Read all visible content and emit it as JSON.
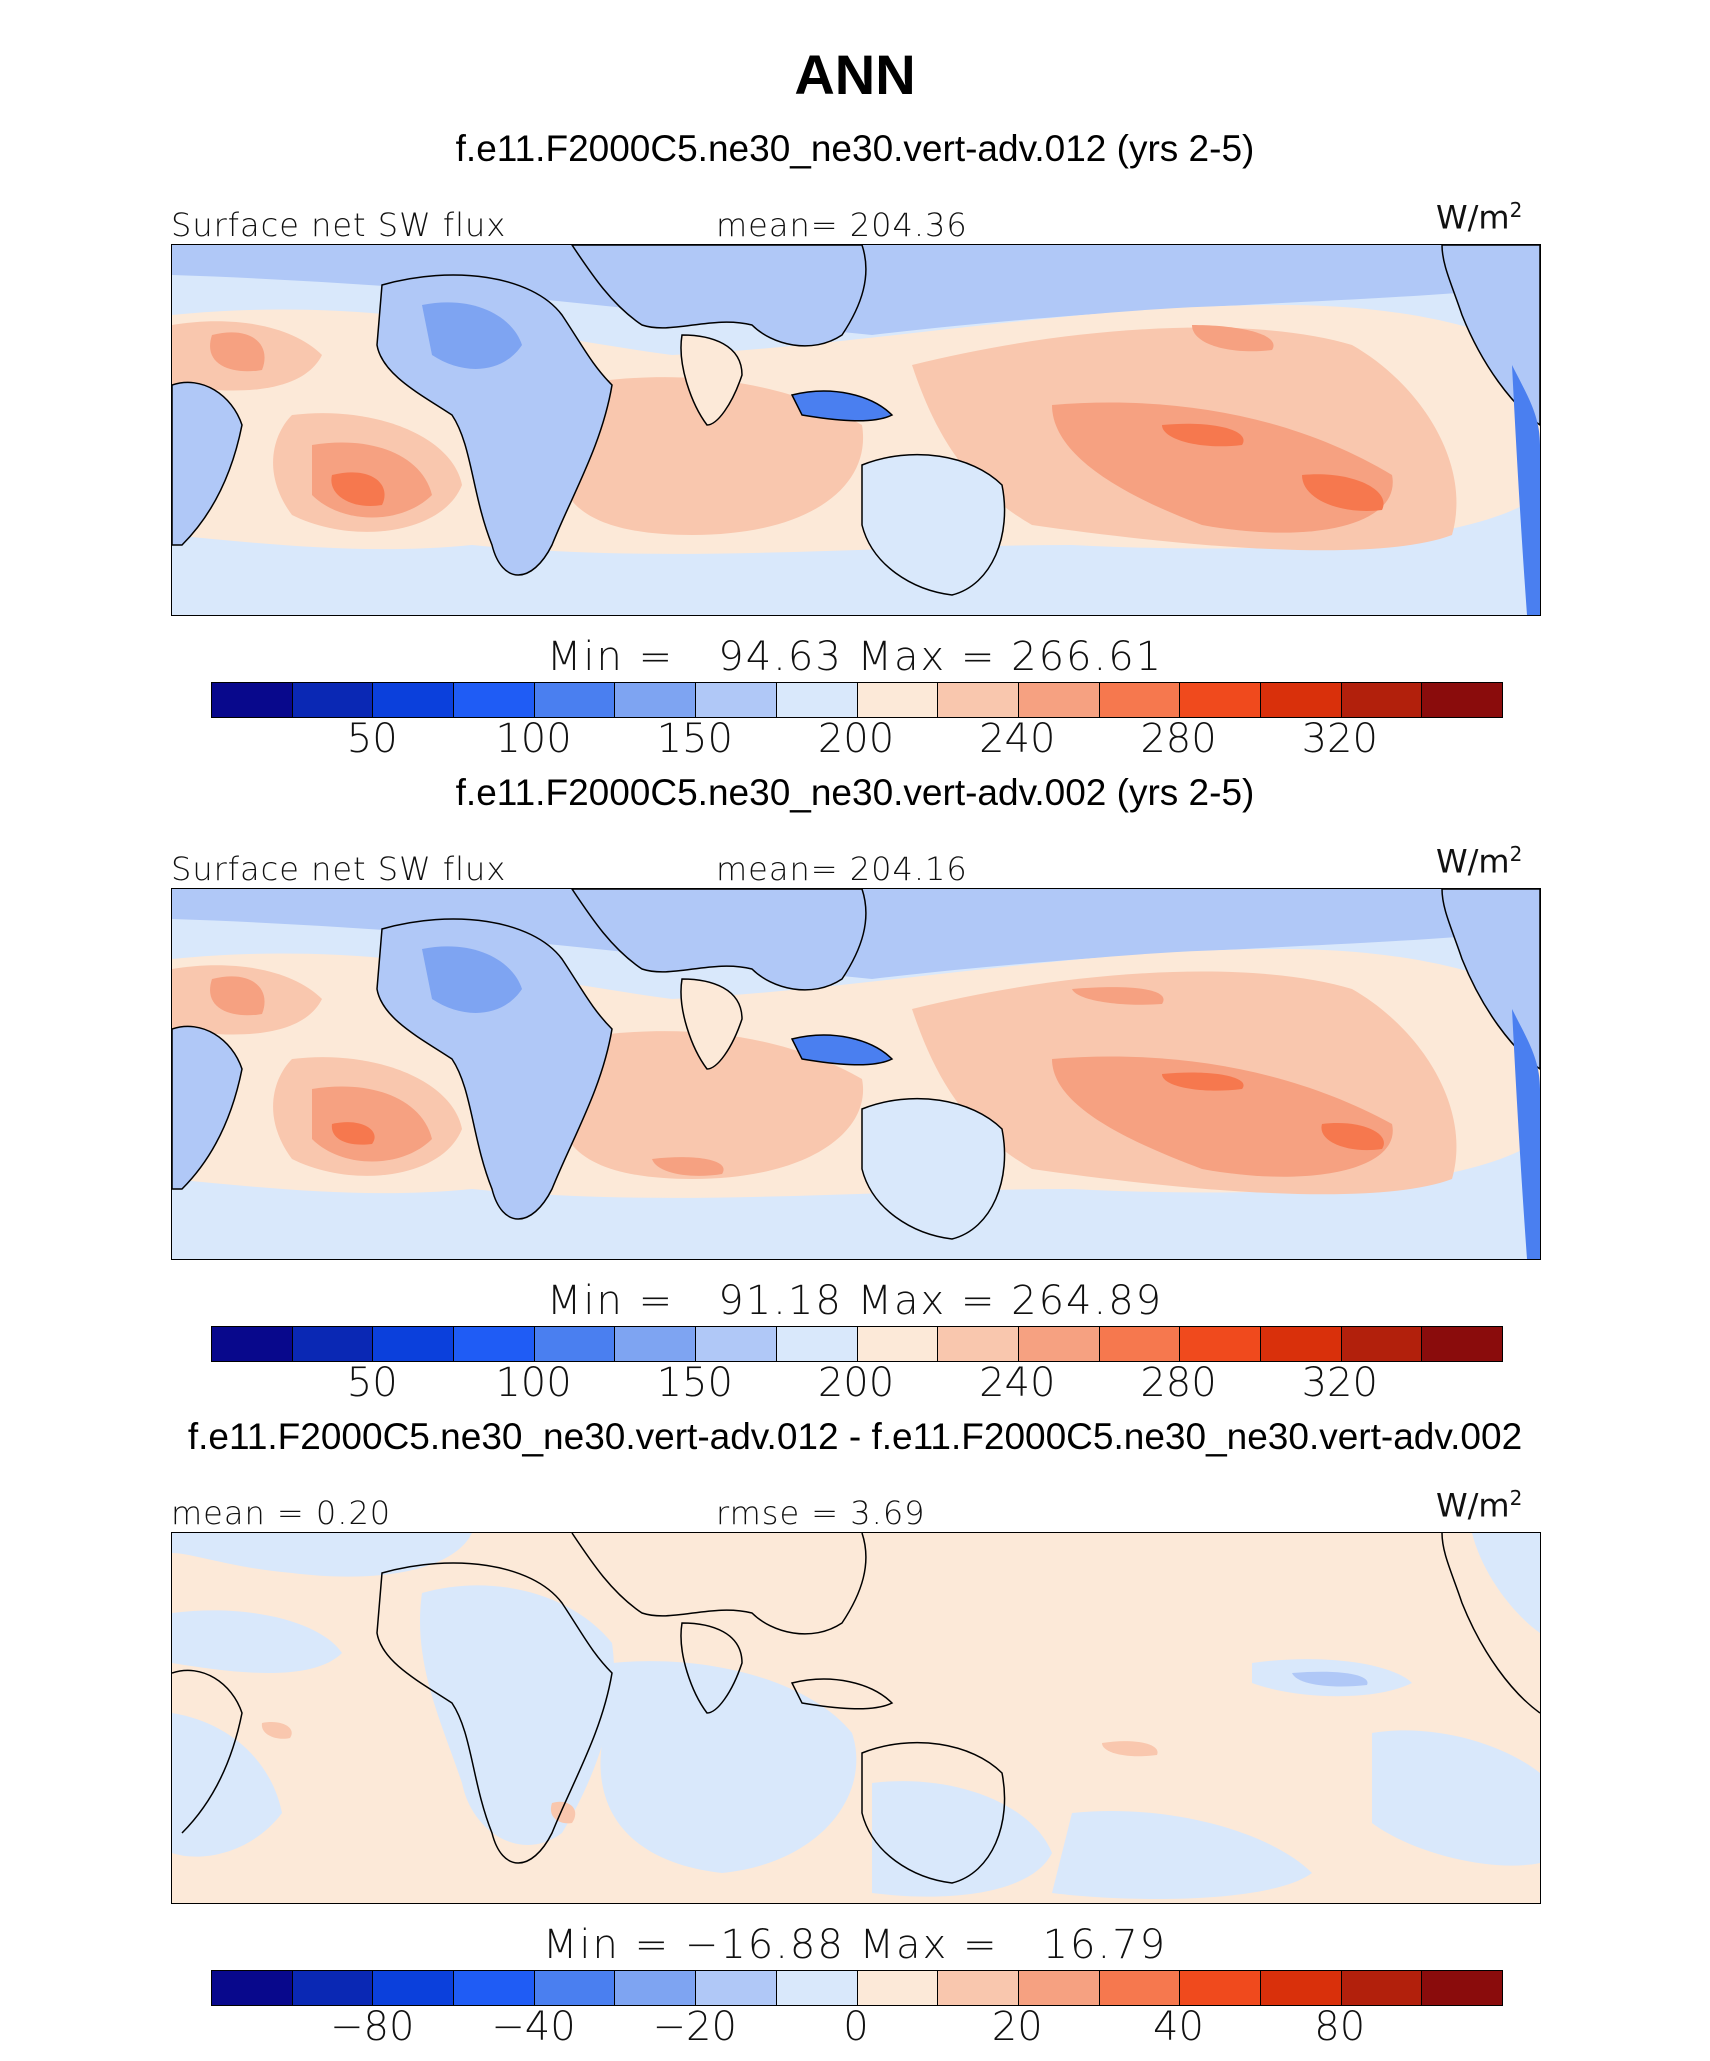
{
  "figure": {
    "title": "ANN"
  },
  "panels": [
    {
      "case_title": "f.e11.F2000C5.ne30_ne30.vert-adv.012 (yrs 2-5)",
      "left_label": "Surface net SW flux",
      "center_label": "mean= 204.36",
      "units": "W/m",
      "units_sup": "2",
      "min_max": "Min =   94.63 Max = 266.61",
      "colorbar_ticks": [
        "50",
        "100",
        "150",
        "200",
        "240",
        "280",
        "320"
      ]
    },
    {
      "case_title": "f.e11.F2000C5.ne30_ne30.vert-adv.002 (yrs 2-5)",
      "left_label": "Surface net SW flux",
      "center_label": "mean= 204.16",
      "units": "W/m",
      "units_sup": "2",
      "min_max": "Min =   91.18 Max = 264.89",
      "colorbar_ticks": [
        "50",
        "100",
        "150",
        "200",
        "240",
        "280",
        "320"
      ]
    },
    {
      "case_title": "f.e11.F2000C5.ne30_ne30.vert-adv.012 - f.e11.F2000C5.ne30_ne30.vert-adv.002",
      "left_label": "mean =    0.20",
      "center_label": "rmse =    3.69",
      "units": "W/m",
      "units_sup": "2",
      "min_max": "Min = −16.88 Max =   16.79",
      "colorbar_ticks": [
        "−80",
        "−40",
        "−20",
        "0",
        "20",
        "40",
        "80"
      ]
    }
  ],
  "colorbar_colors": [
    "#08088c",
    "#0a28b4",
    "#0b40dc",
    "#1f5cf5",
    "#4a7ff0",
    "#7ea4f2",
    "#b0c8f7",
    "#d9e8fb",
    "#fce9d8",
    "#f9c7ae",
    "#f6a181",
    "#f6784e",
    "#f04a1d",
    "#d9300b",
    "#b2200c",
    "#8a0c0c"
  ],
  "map_colors": {
    "light_blue": "#d9e8fb",
    "blue2": "#b0c8f7",
    "blue3": "#7ea4f2",
    "blue4": "#4a7ff0",
    "cream": "#fce9d8",
    "salmon": "#f9c7ae",
    "orange": "#f6a181",
    "deep_orange": "#f6784e",
    "coast": "#000000"
  }
}
